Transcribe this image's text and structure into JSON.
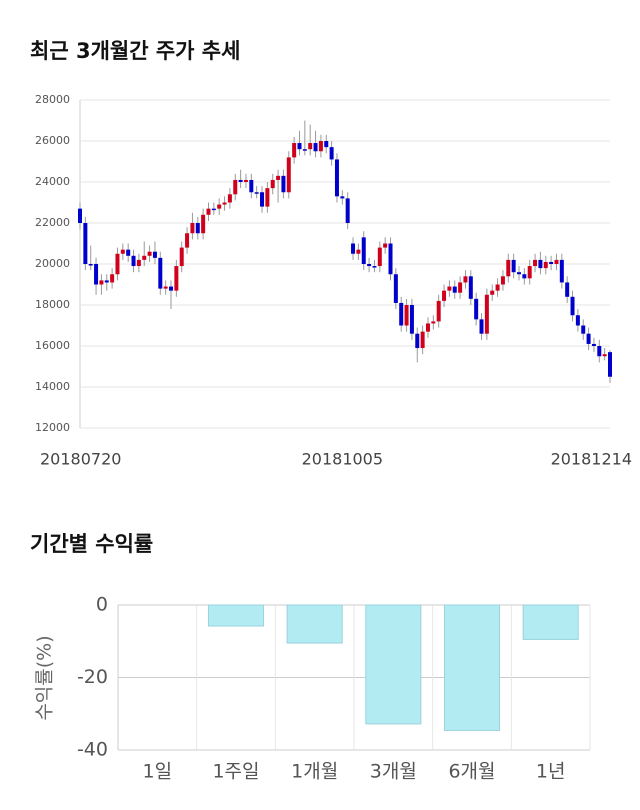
{
  "chart_data": [
    {
      "type": "candlestick",
      "title": "최근 3개월간 주가 추세",
      "categories": [
        "20180720",
        null,
        null,
        null,
        null,
        null,
        null,
        null,
        null,
        null,
        null,
        null,
        null,
        null,
        null,
        null,
        null,
        null,
        null,
        null,
        null,
        null,
        null,
        null,
        null,
        null,
        null,
        null,
        null,
        null,
        null,
        null,
        null,
        null,
        null,
        null,
        null,
        null,
        null,
        null,
        null,
        null,
        null,
        null,
        null,
        null,
        null,
        null,
        null,
        "20181005",
        null,
        null,
        null,
        null,
        null,
        null,
        null,
        null,
        null,
        null,
        null,
        null,
        null,
        null,
        null,
        null,
        null,
        null,
        null,
        null,
        null,
        null,
        null,
        null,
        null,
        null,
        null,
        null,
        null,
        null,
        null,
        null,
        null,
        null,
        null,
        null,
        null,
        null,
        null,
        null,
        null,
        null,
        null,
        null,
        null,
        null,
        null,
        null,
        null,
        "20181214"
      ],
      "open": [
        22700,
        22000,
        20000,
        20000,
        19000,
        19200,
        19100,
        19500,
        20500,
        20700,
        20400,
        19900,
        20200,
        20400,
        20600,
        20300,
        18800,
        18900,
        18700,
        19900,
        20800,
        21500,
        22000,
        21500,
        22400,
        22700,
        22700,
        22900,
        23000,
        23400,
        24100,
        24000,
        24100,
        23500,
        23500,
        22800,
        23700,
        24100,
        24300,
        23500,
        25200,
        25900,
        25600,
        25600,
        25900,
        25500,
        26000,
        25700,
        25100,
        23300,
        23200,
        21000,
        20500,
        21300,
        20000,
        19900,
        19900,
        20800,
        21000,
        19500,
        18100,
        17000,
        18000,
        16600,
        15900,
        16700,
        17100,
        17200,
        18200,
        18700,
        18900,
        18600,
        19100,
        19400,
        18300,
        17300,
        16600,
        18500,
        18700,
        19000,
        19400,
        20200,
        19600,
        19500,
        19300,
        19900,
        20200,
        19800,
        20100,
        20000,
        20200,
        19100,
        18400,
        17500,
        17000,
        16600,
        16100,
        16000,
        15500,
        15700
      ],
      "high": [
        23000,
        22300,
        20900,
        20300,
        19500,
        19500,
        19800,
        20800,
        21000,
        21000,
        20700,
        20500,
        21100,
        20900,
        21100,
        20600,
        19200,
        19200,
        20200,
        21100,
        21800,
        22500,
        22300,
        22700,
        23000,
        23000,
        23200,
        23300,
        23700,
        24400,
        24600,
        24400,
        24400,
        23800,
        23800,
        24000,
        24400,
        24600,
        24600,
        25500,
        26200,
        26500,
        27000,
        26800,
        26500,
        26300,
        26300,
        26000,
        25400,
        23600,
        23500,
        21300,
        21000,
        21600,
        20300,
        20200,
        21100,
        21300,
        21300,
        19800,
        18400,
        18300,
        18300,
        16900,
        17000,
        17400,
        17500,
        18500,
        19000,
        19200,
        19200,
        19400,
        19700,
        19700,
        18600,
        17600,
        18800,
        19000,
        19300,
        19700,
        20500,
        20500,
        19900,
        19800,
        20200,
        20500,
        20600,
        20400,
        20400,
        20500,
        20500,
        19400,
        18700,
        17800,
        17300,
        16900,
        16400,
        16300,
        15900,
        15800
      ],
      "low": [
        21700,
        19700,
        19700,
        18500,
        18500,
        18700,
        18800,
        19200,
        20200,
        20100,
        19600,
        19600,
        19900,
        20100,
        20000,
        18500,
        18500,
        17800,
        18400,
        19600,
        20500,
        21200,
        21200,
        21200,
        22100,
        22400,
        22400,
        22600,
        22700,
        23100,
        23700,
        23700,
        23200,
        23200,
        22500,
        22500,
        23400,
        23000,
        23200,
        23200,
        24900,
        25300,
        25300,
        25300,
        25200,
        25200,
        25400,
        24800,
        23000,
        22900,
        21700,
        20200,
        20200,
        19700,
        19600,
        19600,
        19600,
        20500,
        19200,
        17800,
        16700,
        16700,
        16300,
        15200,
        15600,
        16400,
        16800,
        16900,
        17900,
        18400,
        18300,
        18300,
        18800,
        18000,
        17000,
        16300,
        16300,
        18200,
        18400,
        18700,
        19100,
        19300,
        19200,
        19000,
        19000,
        19600,
        19500,
        19500,
        19700,
        19700,
        18800,
        18100,
        17200,
        16700,
        16300,
        15800,
        15700,
        15200,
        15300,
        14200
      ],
      "close": [
        22000,
        20000,
        20000,
        19000,
        19200,
        19100,
        19500,
        20500,
        20700,
        20400,
        19900,
        20200,
        20400,
        20600,
        20300,
        18800,
        18900,
        18700,
        19900,
        20800,
        21500,
        22000,
        21500,
        22400,
        22700,
        22700,
        22900,
        23000,
        23400,
        24100,
        24000,
        24100,
        23500,
        23500,
        22800,
        23700,
        24100,
        24300,
        23500,
        25200,
        25900,
        25600,
        25600,
        25900,
        25500,
        26000,
        25700,
        25100,
        23300,
        23200,
        22000,
        20500,
        20700,
        20000,
        19900,
        19900,
        20800,
        21000,
        19500,
        18100,
        17000,
        18000,
        16600,
        15900,
        16700,
        17100,
        17200,
        18200,
        18700,
        18900,
        18600,
        19100,
        19400,
        18300,
        17300,
        16600,
        18500,
        18700,
        19000,
        19400,
        20200,
        19600,
        19500,
        19300,
        19900,
        20200,
        19800,
        20100,
        20000,
        20200,
        19100,
        18400,
        17500,
        17000,
        16600,
        16100,
        16000,
        15500,
        15600,
        14500
      ],
      "up_color": "#d0021b",
      "down_color": "#0000cc",
      "ylim": [
        12000,
        28000
      ],
      "yticks": [
        12000,
        14000,
        16000,
        18000,
        20000,
        22000,
        24000,
        26000,
        28000
      ],
      "grid": true
    },
    {
      "type": "bar",
      "title": "기간별 수익률",
      "ylabel": "수익률(%)",
      "categories": [
        "1일",
        "1주일",
        "1개월",
        "3개월",
        "6개월",
        "1년"
      ],
      "values": [
        0,
        -5.8,
        -10.5,
        -32.8,
        -34.6,
        -9.5
      ],
      "color": "#b2ebf2",
      "ylim": [
        -40,
        0
      ],
      "yticks": [
        0,
        -20,
        -40
      ],
      "grid": true
    }
  ]
}
